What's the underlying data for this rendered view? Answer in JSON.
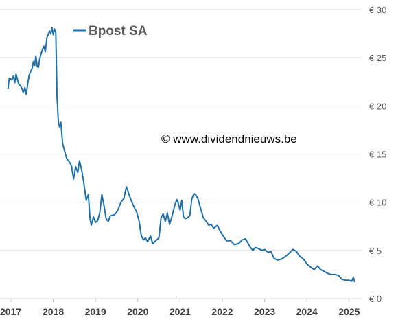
{
  "chart_data": {
    "type": "line",
    "title": "",
    "xlabel": "",
    "ylabel": "",
    "ylim": [
      0,
      30
    ],
    "xlim": [
      2017.0,
      2025.15
    ],
    "grid": "horizontal",
    "legend": "top-left",
    "annotation": "© www.dividendnieuws.be",
    "y_ticks": [
      {
        "value": 0,
        "label": "€ 0"
      },
      {
        "value": 5,
        "label": "€ 5"
      },
      {
        "value": 10,
        "label": "€ 10"
      },
      {
        "value": 15,
        "label": "€ 15"
      },
      {
        "value": 20,
        "label": "€ 20"
      },
      {
        "value": 25,
        "label": "€ 25"
      },
      {
        "value": 30,
        "label": "€ 30"
      }
    ],
    "x_ticks": [
      {
        "value": 2017,
        "label": "2017"
      },
      {
        "value": 2018,
        "label": "2018"
      },
      {
        "value": 2019,
        "label": "2019"
      },
      {
        "value": 2020,
        "label": "2020"
      },
      {
        "value": 2021,
        "label": "2021"
      },
      {
        "value": 2022,
        "label": "2022"
      },
      {
        "value": 2023,
        "label": "2023"
      },
      {
        "value": 2024,
        "label": "2024"
      },
      {
        "value": 2025,
        "label": "2025"
      }
    ],
    "series": [
      {
        "name": "Bpost SA",
        "color": "#1f6fa8",
        "points": [
          [
            2016.93,
            21.8
          ],
          [
            2016.96,
            22.9
          ],
          [
            2017.02,
            22.7
          ],
          [
            2017.06,
            23.1
          ],
          [
            2017.09,
            22.4
          ],
          [
            2017.12,
            23.3
          ],
          [
            2017.15,
            22.8
          ],
          [
            2017.18,
            22.3
          ],
          [
            2017.22,
            22.1
          ],
          [
            2017.25,
            21.9
          ],
          [
            2017.29,
            21.4
          ],
          [
            2017.33,
            21.9
          ],
          [
            2017.36,
            21.2
          ],
          [
            2017.4,
            22.4
          ],
          [
            2017.43,
            23.2
          ],
          [
            2017.46,
            23.5
          ],
          [
            2017.5,
            23.9
          ],
          [
            2017.53,
            24.6
          ],
          [
            2017.56,
            24.2
          ],
          [
            2017.59,
            25.2
          ],
          [
            2017.62,
            24.1
          ],
          [
            2017.65,
            24.0
          ],
          [
            2017.68,
            24.9
          ],
          [
            2017.71,
            25.4
          ],
          [
            2017.75,
            25.9
          ],
          [
            2017.78,
            26.2
          ],
          [
            2017.81,
            25.6
          ],
          [
            2017.85,
            27.1
          ],
          [
            2017.88,
            27.4
          ],
          [
            2017.91,
            27.8
          ],
          [
            2017.94,
            27.5
          ],
          [
            2017.97,
            28.1
          ],
          [
            2018.0,
            27.4
          ],
          [
            2018.03,
            28.0
          ],
          [
            2018.06,
            27.6
          ],
          [
            2018.09,
            21.0
          ],
          [
            2018.12,
            18.4
          ],
          [
            2018.15,
            17.8
          ],
          [
            2018.18,
            18.3
          ],
          [
            2018.22,
            16.1
          ],
          [
            2018.27,
            15.3
          ],
          [
            2018.32,
            14.5
          ],
          [
            2018.38,
            14.2
          ],
          [
            2018.43,
            13.8
          ],
          [
            2018.48,
            12.4
          ],
          [
            2018.53,
            13.7
          ],
          [
            2018.58,
            13.1
          ],
          [
            2018.62,
            14.3
          ],
          [
            2018.67,
            13.4
          ],
          [
            2018.72,
            12.1
          ],
          [
            2018.78,
            10.2
          ],
          [
            2018.83,
            10.8
          ],
          [
            2018.87,
            8.3
          ],
          [
            2018.9,
            7.6
          ],
          [
            2018.95,
            8.5
          ],
          [
            2019.0,
            7.9
          ],
          [
            2019.05,
            8.1
          ],
          [
            2019.1,
            8.9
          ],
          [
            2019.15,
            10.8
          ],
          [
            2019.2,
            9.7
          ],
          [
            2019.25,
            8.3
          ],
          [
            2019.3,
            8.0
          ],
          [
            2019.35,
            8.6
          ],
          [
            2019.45,
            8.7
          ],
          [
            2019.52,
            9.1
          ],
          [
            2019.6,
            10.0
          ],
          [
            2019.67,
            10.4
          ],
          [
            2019.73,
            11.6
          ],
          [
            2019.8,
            10.7
          ],
          [
            2019.88,
            9.8
          ],
          [
            2019.97,
            9.0
          ],
          [
            2020.03,
            8.1
          ],
          [
            2020.08,
            6.6
          ],
          [
            2020.13,
            6.1
          ],
          [
            2020.18,
            6.3
          ],
          [
            2020.23,
            5.9
          ],
          [
            2020.3,
            6.5
          ],
          [
            2020.35,
            5.7
          ],
          [
            2020.42,
            6.0
          ],
          [
            2020.5,
            6.3
          ],
          [
            2020.55,
            8.4
          ],
          [
            2020.6,
            8.8
          ],
          [
            2020.65,
            8.0
          ],
          [
            2020.7,
            8.9
          ],
          [
            2020.75,
            7.7
          ],
          [
            2020.8,
            8.4
          ],
          [
            2020.87,
            9.6
          ],
          [
            2020.92,
            10.3
          ],
          [
            2020.95,
            10.0
          ],
          [
            2021.0,
            9.2
          ],
          [
            2021.04,
            10.2
          ],
          [
            2021.08,
            8.5
          ],
          [
            2021.13,
            8.3
          ],
          [
            2021.18,
            8.4
          ],
          [
            2021.23,
            8.6
          ],
          [
            2021.28,
            10.4
          ],
          [
            2021.33,
            10.9
          ],
          [
            2021.38,
            10.7
          ],
          [
            2021.42,
            10.4
          ],
          [
            2021.47,
            9.6
          ],
          [
            2021.55,
            8.4
          ],
          [
            2021.62,
            8.0
          ],
          [
            2021.68,
            7.6
          ],
          [
            2021.73,
            7.7
          ],
          [
            2021.8,
            7.3
          ],
          [
            2021.88,
            7.6
          ],
          [
            2021.95,
            7.0
          ],
          [
            2022.02,
            6.5
          ],
          [
            2022.1,
            6.0
          ],
          [
            2022.2,
            6.0
          ],
          [
            2022.28,
            5.6
          ],
          [
            2022.38,
            5.7
          ],
          [
            2022.47,
            6.1
          ],
          [
            2022.55,
            6.2
          ],
          [
            2022.6,
            5.8
          ],
          [
            2022.65,
            5.4
          ],
          [
            2022.72,
            5.0
          ],
          [
            2022.78,
            5.3
          ],
          [
            2022.85,
            5.2
          ],
          [
            2022.93,
            5.0
          ],
          [
            2023.0,
            5.1
          ],
          [
            2023.08,
            4.8
          ],
          [
            2023.15,
            4.9
          ],
          [
            2023.22,
            4.2
          ],
          [
            2023.3,
            4.0
          ],
          [
            2023.4,
            4.1
          ],
          [
            2023.5,
            4.4
          ],
          [
            2023.6,
            4.8
          ],
          [
            2023.67,
            5.1
          ],
          [
            2023.75,
            4.9
          ],
          [
            2023.83,
            4.4
          ],
          [
            2023.92,
            4.1
          ],
          [
            2024.0,
            3.6
          ],
          [
            2024.08,
            3.3
          ],
          [
            2024.17,
            3.0
          ],
          [
            2024.25,
            3.4
          ],
          [
            2024.33,
            3.0
          ],
          [
            2024.42,
            2.8
          ],
          [
            2024.5,
            2.6
          ],
          [
            2024.58,
            2.5
          ],
          [
            2024.67,
            2.5
          ],
          [
            2024.75,
            2.4
          ],
          [
            2024.83,
            2.0
          ],
          [
            2024.92,
            1.9
          ],
          [
            2025.0,
            1.9
          ],
          [
            2025.06,
            1.8
          ],
          [
            2025.1,
            2.2
          ],
          [
            2025.13,
            1.7
          ]
        ]
      }
    ]
  }
}
